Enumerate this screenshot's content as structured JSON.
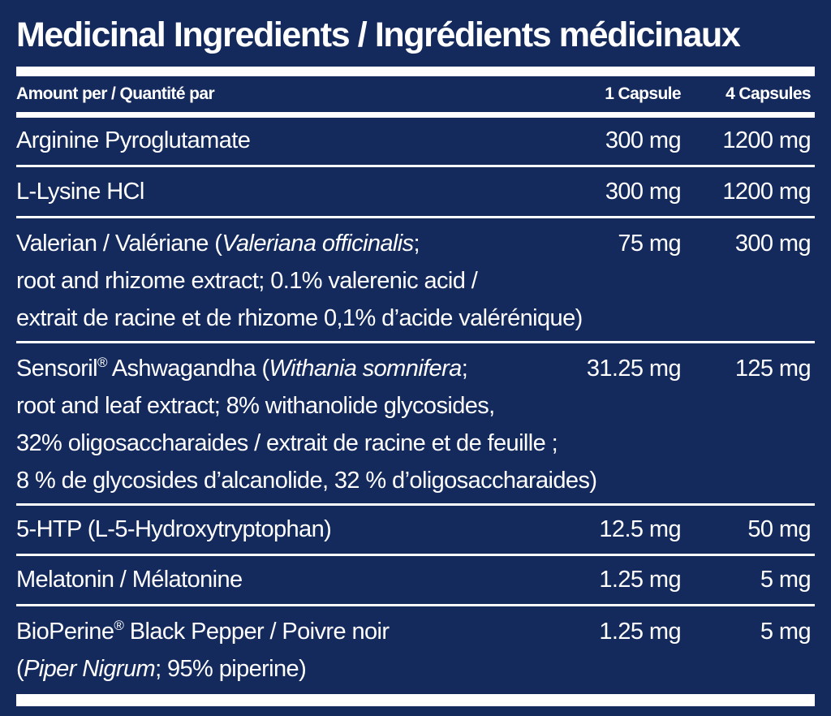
{
  "panel": {
    "title": "Medicinal Ingredients / Ingrédients médicinaux",
    "header": {
      "label": "Amount per / Quantité par",
      "col1": "1 Capsule",
      "col2": "4 Capsules"
    },
    "rows": [
      {
        "lines": [
          "Arginine Pyroglutamate"
        ],
        "col1": "300 mg",
        "col2": "1200 mg"
      },
      {
        "lines": [
          "L-Lysine HCl"
        ],
        "col1": "300 mg",
        "col2": "1200 mg"
      },
      {
        "line1_pre": "Valerian / Valériane (",
        "line1_italic": "Valeriana officinalis",
        "line1_post": ";",
        "line2": "root and rhizome extract; 0.1% valerenic acid /",
        "line3": "extrait de racine et de rhizome 0,1% d’acide valérénique)",
        "col1": "75 mg",
        "col2": "300 mg"
      },
      {
        "line1_pre": "Sensoril",
        "line1_reg": "®",
        "line1_mid": " Ashwagandha (",
        "line1_italic": "Withania somnifera",
        "line1_post": ";",
        "line2": "root and leaf extract; 8% withanolide glycosides,",
        "line3": "32% oligosaccharaides / extrait de racine et de feuille ;",
        "line4": "8 % de glycosides d’alcanolide, 32 % d’oligosaccharaides)",
        "col1": "31.25 mg",
        "col2": "125 mg"
      },
      {
        "lines": [
          "5-HTP (L-5-Hydroxytryptophan)"
        ],
        "col1": "12.5 mg",
        "col2": "50 mg"
      },
      {
        "lines": [
          "Melatonin / Mélatonine"
        ],
        "col1": "1.25 mg",
        "col2": "5 mg"
      },
      {
        "line1_pre": "BioPerine",
        "line1_reg": "®",
        "line1_post": " Black Pepper / Poivre noir",
        "line2_pre": "(",
        "line2_italic": "Piper Nigrum",
        "line2_post": "; 95% piperine)",
        "col1": "1.25 mg",
        "col2": "5 mg"
      }
    ]
  },
  "colors": {
    "background": "#142a5c",
    "text": "#ffffff"
  }
}
